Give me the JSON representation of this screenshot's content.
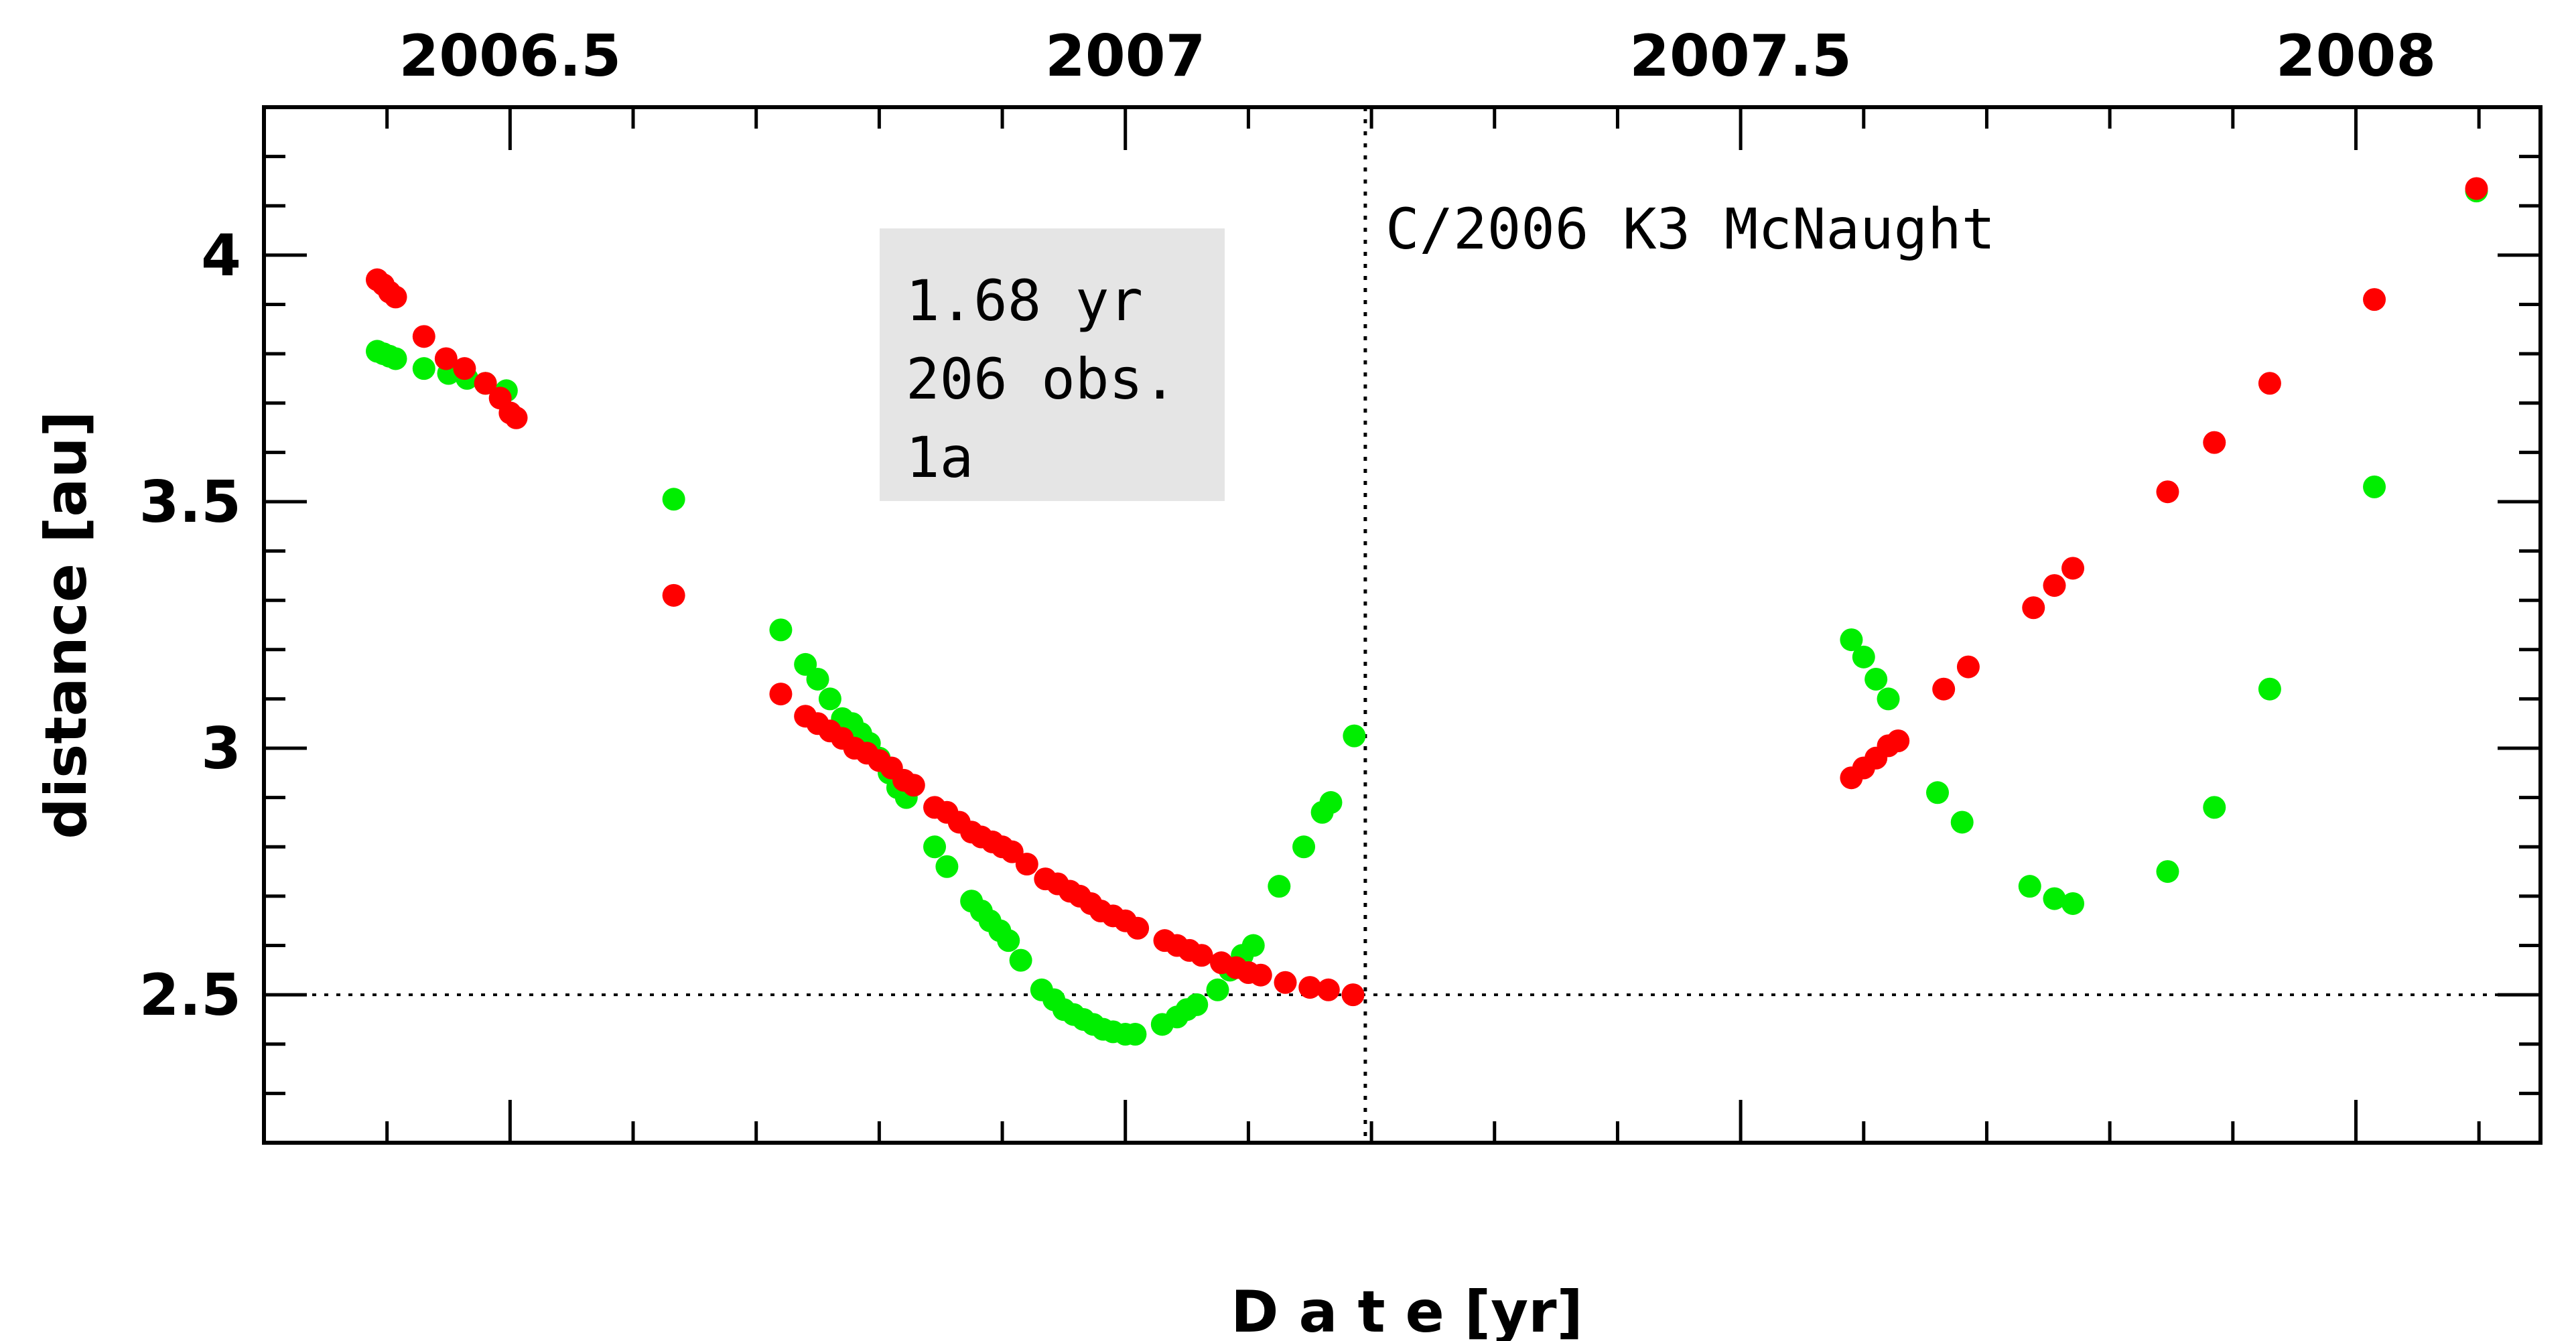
{
  "chart_data": {
    "type": "scatter",
    "title": "C/2006 K3 McNaught",
    "xlabel": "D a t e [yr]",
    "ylabel": "distance [au]",
    "xlim": [
      2006.3,
      2008.15
    ],
    "ylim": [
      2.2,
      4.3
    ],
    "x_ticks": [
      {
        "value": 2006.5,
        "label": "2006.5"
      },
      {
        "value": 2007.0,
        "label": "2007"
      },
      {
        "value": 2007.5,
        "label": "2007.5"
      },
      {
        "value": 2008.0,
        "label": "2008"
      }
    ],
    "y_ticks": [
      {
        "value": 2.5,
        "label": "2.5"
      },
      {
        "value": 3.0,
        "label": "3"
      },
      {
        "value": 3.5,
        "label": "3.5"
      },
      {
        "value": 4.0,
        "label": "4"
      }
    ],
    "reference_lines": {
      "horizontal_y": 2.5,
      "vertical_x": 2007.195
    },
    "info_box": {
      "lines": [
        "1.68 yr",
        "206 obs.",
        "1a"
      ],
      "background": "#e5e5e5"
    },
    "series": [
      {
        "name": "green",
        "color": "#00ee00",
        "points": [
          [
            2006.392,
            3.805
          ],
          [
            2006.397,
            3.8
          ],
          [
            2006.402,
            3.795
          ],
          [
            2006.407,
            3.79
          ],
          [
            2006.43,
            3.77
          ],
          [
            2006.45,
            3.76
          ],
          [
            2006.465,
            3.75
          ],
          [
            2006.48,
            3.74
          ],
          [
            2006.497,
            3.725
          ],
          [
            2006.633,
            3.505
          ],
          [
            2006.72,
            3.24
          ],
          [
            2006.74,
            3.17
          ],
          [
            2006.75,
            3.14
          ],
          [
            2006.76,
            3.1
          ],
          [
            2006.77,
            3.06
          ],
          [
            2006.778,
            3.05
          ],
          [
            2006.785,
            3.03
          ],
          [
            2006.792,
            3.01
          ],
          [
            2006.8,
            2.98
          ],
          [
            2006.808,
            2.95
          ],
          [
            2006.815,
            2.92
          ],
          [
            2006.822,
            2.9
          ],
          [
            2006.845,
            2.8
          ],
          [
            2006.855,
            2.76
          ],
          [
            2006.875,
            2.69
          ],
          [
            2006.883,
            2.67
          ],
          [
            2006.89,
            2.65
          ],
          [
            2006.898,
            2.63
          ],
          [
            2006.905,
            2.61
          ],
          [
            2006.915,
            2.57
          ],
          [
            2006.932,
            2.51
          ],
          [
            2006.942,
            2.49
          ],
          [
            2006.95,
            2.47
          ],
          [
            2006.958,
            2.46
          ],
          [
            2006.966,
            2.45
          ],
          [
            2006.974,
            2.44
          ],
          [
            2006.982,
            2.43
          ],
          [
            2006.99,
            2.425
          ],
          [
            2007.0,
            2.42
          ],
          [
            2007.008,
            2.42
          ],
          [
            2007.03,
            2.44
          ],
          [
            2007.042,
            2.455
          ],
          [
            2007.05,
            2.47
          ],
          [
            2007.058,
            2.48
          ],
          [
            2007.075,
            2.51
          ],
          [
            2007.085,
            2.55
          ],
          [
            2007.095,
            2.58
          ],
          [
            2007.104,
            2.6
          ],
          [
            2007.125,
            2.72
          ],
          [
            2007.145,
            2.8
          ],
          [
            2007.16,
            2.87
          ],
          [
            2007.167,
            2.89
          ],
          [
            2007.186,
            3.025
          ],
          [
            2007.59,
            3.22
          ],
          [
            2007.6,
            3.185
          ],
          [
            2007.61,
            3.14
          ],
          [
            2007.62,
            3.1
          ],
          [
            2007.66,
            2.91
          ],
          [
            2007.68,
            2.85
          ],
          [
            2007.735,
            2.72
          ],
          [
            2007.755,
            2.695
          ],
          [
            2007.77,
            2.685
          ],
          [
            2007.847,
            2.75
          ],
          [
            2007.885,
            2.88
          ],
          [
            2007.93,
            3.12
          ],
          [
            2008.015,
            3.53
          ],
          [
            2008.098,
            4.13
          ]
        ]
      },
      {
        "name": "red",
        "color": "#ff0000",
        "points": [
          [
            2006.392,
            3.95
          ],
          [
            2006.397,
            3.94
          ],
          [
            2006.402,
            3.925
          ],
          [
            2006.407,
            3.915
          ],
          [
            2006.43,
            3.835
          ],
          [
            2006.448,
            3.79
          ],
          [
            2006.463,
            3.77
          ],
          [
            2006.48,
            3.74
          ],
          [
            2006.492,
            3.71
          ],
          [
            2006.5,
            3.68
          ],
          [
            2006.505,
            3.67
          ],
          [
            2006.633,
            3.31
          ],
          [
            2006.72,
            3.11
          ],
          [
            2006.74,
            3.065
          ],
          [
            2006.75,
            3.05
          ],
          [
            2006.76,
            3.035
          ],
          [
            2006.77,
            3.02
          ],
          [
            2006.78,
            3.0
          ],
          [
            2006.79,
            2.99
          ],
          [
            2006.8,
            2.975
          ],
          [
            2006.81,
            2.96
          ],
          [
            2006.82,
            2.935
          ],
          [
            2006.828,
            2.925
          ],
          [
            2006.845,
            2.88
          ],
          [
            2006.855,
            2.87
          ],
          [
            2006.865,
            2.85
          ],
          [
            2006.875,
            2.83
          ],
          [
            2006.883,
            2.82
          ],
          [
            2006.892,
            2.81
          ],
          [
            2006.9,
            2.8
          ],
          [
            2006.908,
            2.79
          ],
          [
            2006.92,
            2.765
          ],
          [
            2006.935,
            2.735
          ],
          [
            2006.945,
            2.725
          ],
          [
            2006.955,
            2.71
          ],
          [
            2006.963,
            2.7
          ],
          [
            2006.972,
            2.685
          ],
          [
            2006.98,
            2.67
          ],
          [
            2006.99,
            2.66
          ],
          [
            2007.0,
            2.65
          ],
          [
            2007.01,
            2.635
          ],
          [
            2007.032,
            2.61
          ],
          [
            2007.042,
            2.6
          ],
          [
            2007.052,
            2.59
          ],
          [
            2007.062,
            2.58
          ],
          [
            2007.078,
            2.565
          ],
          [
            2007.09,
            2.555
          ],
          [
            2007.1,
            2.545
          ],
          [
            2007.11,
            2.54
          ],
          [
            2007.13,
            2.525
          ],
          [
            2007.15,
            2.515
          ],
          [
            2007.165,
            2.51
          ],
          [
            2007.185,
            2.5
          ],
          [
            2007.59,
            2.94
          ],
          [
            2007.6,
            2.96
          ],
          [
            2007.61,
            2.98
          ],
          [
            2007.62,
            3.005
          ],
          [
            2007.628,
            3.015
          ],
          [
            2007.665,
            3.12
          ],
          [
            2007.685,
            3.165
          ],
          [
            2007.738,
            3.285
          ],
          [
            2007.755,
            3.33
          ],
          [
            2007.77,
            3.365
          ],
          [
            2007.847,
            3.52
          ],
          [
            2007.885,
            3.62
          ],
          [
            2007.93,
            3.74
          ],
          [
            2008.015,
            3.91
          ],
          [
            2008.098,
            4.135
          ]
        ]
      }
    ]
  }
}
